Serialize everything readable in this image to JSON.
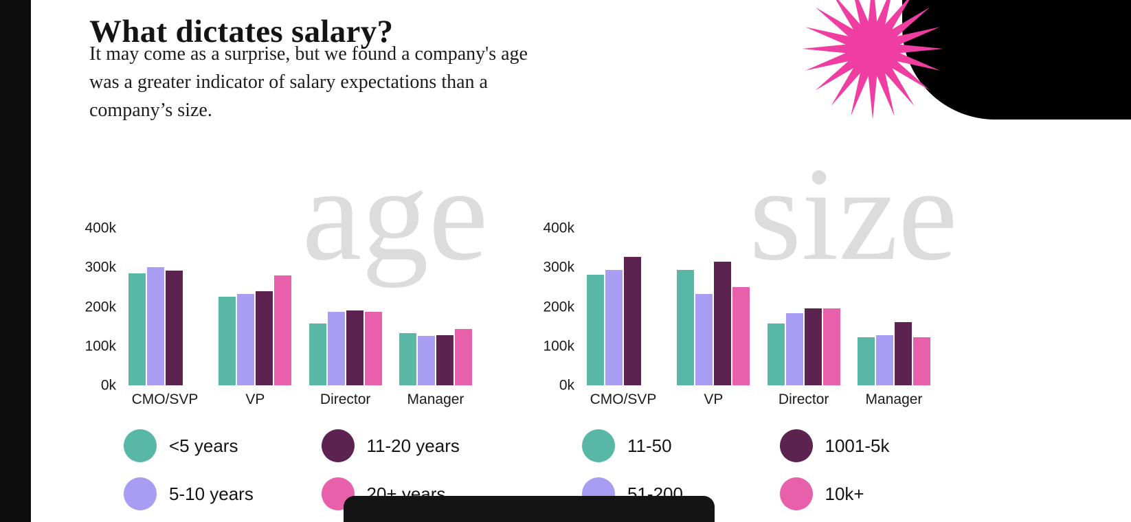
{
  "page": {
    "title": "What dictates salary?",
    "subtitle_lines": [
      "It may come as a surprise, but we found a company's age",
      "was a greater indicator of salary expectations than a",
      "company’s size."
    ]
  },
  "decor": {
    "starburst_color": "#ef3da2",
    "corner_color": "#000000",
    "side_strip_color": "#0d0d0d",
    "watermark_color": "#dcdcdc",
    "dock_color": "#141414",
    "background_color": "#ffffff"
  },
  "chart_data": [
    {
      "type": "bar",
      "watermark": "age",
      "categories": [
        "CMO/SVP",
        "VP",
        "Director",
        "Manager"
      ],
      "yticks": [
        "0k",
        "100k",
        "200k",
        "300k",
        "400k"
      ],
      "ylim_k": [
        0,
        400
      ],
      "grid": false,
      "legend_position": "bottom",
      "series": [
        {
          "name": "<5 years",
          "color": "#59b7a5",
          "values_k": [
            285,
            225,
            158,
            133
          ]
        },
        {
          "name": "5-10 years",
          "color": "#a89df2",
          "values_k": [
            300,
            232,
            187,
            126
          ]
        },
        {
          "name": "11-20 years",
          "color": "#5c2350",
          "values_k": [
            292,
            240,
            190,
            127
          ]
        },
        {
          "name": "20+ years",
          "color": "#e85fab",
          "values_k": [
            0,
            280,
            187,
            144
          ]
        }
      ]
    },
    {
      "type": "bar",
      "watermark": "size",
      "categories": [
        "CMO/SVP",
        "VP",
        "Director",
        "Manager"
      ],
      "yticks": [
        "0k",
        "100k",
        "200k",
        "300k",
        "400k"
      ],
      "ylim_k": [
        0,
        400
      ],
      "grid": false,
      "legend_position": "bottom",
      "series": [
        {
          "name": "11-50",
          "color": "#59b7a5",
          "values_k": [
            282,
            293,
            158,
            122
          ]
        },
        {
          "name": "51-200",
          "color": "#a89df2",
          "values_k": [
            293,
            232,
            184,
            128
          ]
        },
        {
          "name": "1001-5k",
          "color": "#5c2350",
          "values_k": [
            327,
            314,
            196,
            161
          ]
        },
        {
          "name": "10k+",
          "color": "#e85fab",
          "values_k": [
            0,
            250,
            195,
            122
          ]
        }
      ]
    }
  ]
}
